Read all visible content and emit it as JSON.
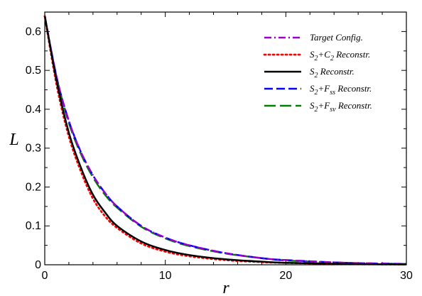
{
  "chart_data": {
    "type": "line",
    "xlabel": "r",
    "ylabel": "L",
    "xlim": [
      0,
      30
    ],
    "ylim": [
      0,
      0.65
    ],
    "x_ticks": [
      0,
      10,
      20,
      30
    ],
    "y_ticks": [
      0,
      0.1,
      0.2,
      0.3,
      0.4,
      0.5,
      0.6
    ],
    "x_tick_labels": [
      "0",
      "10",
      "20",
      "30"
    ],
    "y_tick_labels": [
      "0",
      "0.1",
      "0.2",
      "0.3",
      "0.4",
      "0.5",
      "0.6"
    ],
    "grid": false,
    "legend_position": "top-right",
    "series": [
      {
        "name": "Target Config.",
        "color": "#9900cc",
        "dash": "dashdot",
        "x": [
          0,
          1,
          2,
          3,
          4,
          5,
          6,
          8,
          10,
          12,
          15,
          18,
          20,
          25,
          30
        ],
        "y": [
          0.64,
          0.48,
          0.37,
          0.29,
          0.23,
          0.185,
          0.15,
          0.1,
          0.07,
          0.05,
          0.03,
          0.017,
          0.012,
          0.005,
          0.002
        ]
      },
      {
        "name": "S2+C2 Reconstr.",
        "name_parts": {
          "base": "S",
          "sub1": "2",
          "op": "+",
          "base2": "C",
          "sub2": "2",
          "tail": " Reconstr."
        },
        "color": "#ff0000",
        "dash": "dotted",
        "x": [
          0,
          1,
          2,
          3,
          4,
          5,
          6,
          8,
          10,
          12,
          15,
          18,
          20,
          25,
          30
        ],
        "y": [
          0.64,
          0.46,
          0.33,
          0.24,
          0.17,
          0.125,
          0.095,
          0.055,
          0.034,
          0.022,
          0.012,
          0.007,
          0.005,
          0.002,
          0.001
        ]
      },
      {
        "name": "S2 Reconstr.",
        "name_parts": {
          "base": "S",
          "sub1": "2",
          "op": "",
          "base2": "",
          "sub2": "",
          "tail": " Reconstr."
        },
        "color": "#000000",
        "dash": "solid",
        "x": [
          0,
          1,
          2,
          3,
          4,
          5,
          6,
          8,
          10,
          12,
          15,
          18,
          20,
          25,
          30
        ],
        "y": [
          0.64,
          0.47,
          0.34,
          0.25,
          0.18,
          0.135,
          0.1,
          0.06,
          0.038,
          0.025,
          0.014,
          0.008,
          0.005,
          0.002,
          0.001
        ]
      },
      {
        "name": "S2+Fss Reconstr.",
        "name_parts": {
          "base": "S",
          "sub1": "2",
          "op": "+",
          "base2": "F",
          "sub2": "ss",
          "tail": " Reconstr."
        },
        "color": "#0000ff",
        "dash": "dashed",
        "x": [
          0,
          1,
          2,
          3,
          4,
          5,
          6,
          8,
          10,
          12,
          15,
          18,
          20,
          25,
          30
        ],
        "y": [
          0.64,
          0.48,
          0.37,
          0.29,
          0.23,
          0.185,
          0.15,
          0.1,
          0.07,
          0.05,
          0.03,
          0.017,
          0.012,
          0.005,
          0.002
        ]
      },
      {
        "name": "S2+Fsv Reconstr.",
        "name_parts": {
          "base": "S",
          "sub1": "2",
          "op": "+",
          "base2": "F",
          "sub2": "sv",
          "tail": " Reconstr."
        },
        "color": "#008000",
        "dash": "longdash",
        "x": [
          0,
          1,
          2,
          3,
          4,
          5,
          6,
          8,
          10,
          12,
          15,
          18,
          20,
          25,
          30
        ],
        "y": [
          0.64,
          0.48,
          0.365,
          0.285,
          0.225,
          0.18,
          0.147,
          0.098,
          0.068,
          0.048,
          0.029,
          0.017,
          0.011,
          0.005,
          0.002
        ]
      }
    ]
  }
}
